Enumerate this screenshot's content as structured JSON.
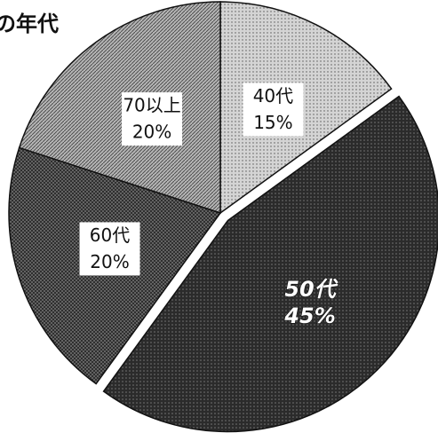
{
  "chart_data": {
    "type": "pie",
    "title": "の年代",
    "categories": [
      "40代",
      "50代",
      "60代",
      "70以上"
    ],
    "values": [
      15,
      45,
      20,
      20
    ],
    "value_labels": [
      "15%",
      "45%",
      "20%",
      "20%"
    ],
    "colors": [
      "#d4d4d4",
      "#2b2b2b",
      "#707070",
      "#b4b4b4"
    ],
    "explode": [
      false,
      true,
      false,
      false
    ]
  }
}
